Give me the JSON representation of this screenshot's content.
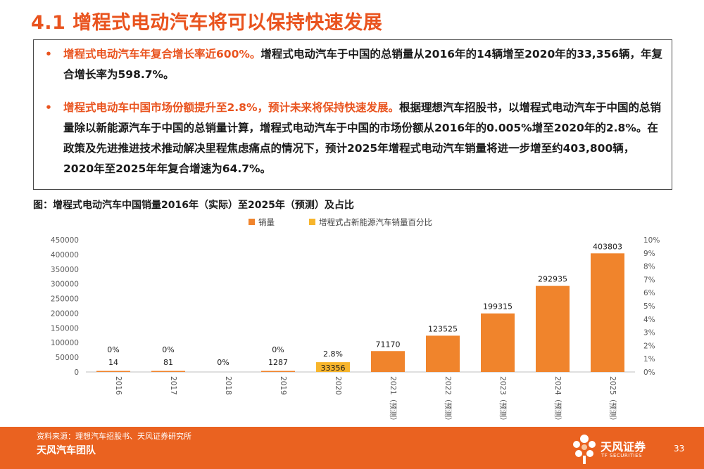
{
  "page": {
    "title": "4.1 增程式电动汽车将可以保持快速发展",
    "bullets": [
      {
        "highlight": "增程式电动汽车年复合增长率近600%。",
        "body": "增程式电动汽车于中国的总销量从2016年的14辆增至2020年的33,356辆，年复合增长率为598.7%。"
      },
      {
        "highlight": "增程式电动车中国市场份额提升至2.8%，预计未来将保持快速发展。",
        "body": "根据理想汽车招股书，以增程式电动汽车于中国的总销量除以新能源汽车于中国的总销量计算，增程式电动汽车于中国的市场份额从2016年的0.005%增至2020年的2.8%。在政策及先进推进技术推动解决里程焦虑痛点的情况下，预计2025年增程式电动汽车销量将进一步增至约403,800辆，2020年至2025年年复合增速为64.7%。"
      }
    ],
    "figure_caption": "图：增程式电动汽车中国销量2016年（实际）至2025年（预测）及占比",
    "source": "资料来源：理想汽车招股书、天风证券研究所",
    "team": "天风汽车团队",
    "logo_name": "天风证券",
    "logo_sub": "TF SECURITIES",
    "page_number": "33"
  },
  "chart_data": {
    "type": "bar",
    "categories": [
      "2016",
      "2017",
      "2018",
      "2019",
      "2020",
      "2021（预测）",
      "2022（预测）",
      "2023（预测）",
      "2024（预测）",
      "2025（预测）"
    ],
    "series": [
      {
        "name": "销量",
        "axis": "left",
        "values": [
          14,
          81,
          0,
          1287,
          33356,
          71170,
          123525,
          199315,
          292935,
          403803
        ],
        "labels": [
          "14",
          "81",
          "0%",
          "1287",
          "33356",
          "71170",
          "123525",
          "199315",
          "292935",
          "403803"
        ]
      },
      {
        "name": "增程式占新能源汽车销量百分比",
        "axis": "right",
        "values": [
          0.005,
          0,
          null,
          0.1,
          2.8,
          null,
          null,
          null,
          null,
          null
        ],
        "labels": [
          "0%",
          "0%",
          "",
          "0%",
          "2.8%",
          "",
          "",
          "",
          "",
          ""
        ]
      }
    ],
    "highlight_index": 4,
    "ylim": [
      0,
      450000
    ],
    "yticks": [
      "0",
      "50000",
      "100000",
      "150000",
      "200000",
      "250000",
      "300000",
      "350000",
      "400000",
      "450000"
    ],
    "y2lim": [
      0,
      10
    ],
    "y2ticks": [
      "0%",
      "1%",
      "2%",
      "3%",
      "4%",
      "5%",
      "6%",
      "7%",
      "8%",
      "9%",
      "10%"
    ],
    "legend_position": "top",
    "grid": false,
    "colors": {
      "sales": "#f0842c",
      "share": "#f7b52c"
    }
  }
}
